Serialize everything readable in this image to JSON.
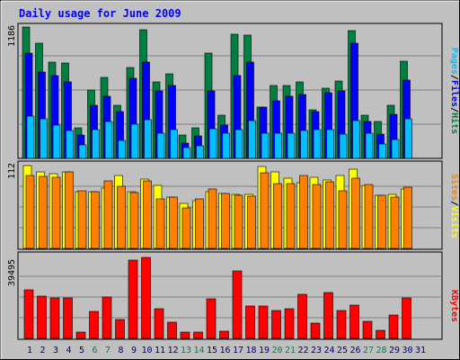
{
  "page": {
    "title": "Daily usage for June 2009"
  },
  "colors": {
    "frame_bg": "#c0c0c0",
    "title": "#0000ff",
    "hits": "#008040",
    "files": "#0000ff",
    "pages": "#00c0ff",
    "visits": "#ffff00",
    "sites": "#ff8000",
    "kbytes": "#ff0000",
    "weekend_label": "#00805c",
    "day_label": "#000080"
  },
  "chart_data": [
    {
      "type": "bar",
      "panel": "hits-files-pages",
      "categories": [
        "1",
        "2",
        "3",
        "4",
        "5",
        "6",
        "7",
        "8",
        "9",
        "10",
        "11",
        "12",
        "13",
        "14",
        "15",
        "16",
        "17",
        "18",
        "19",
        "20",
        "21",
        "22",
        "23",
        "24",
        "25",
        "26",
        "27",
        "28",
        "29",
        "30",
        "31"
      ],
      "axis_max_label": "1186",
      "ylim": [
        0,
        1186
      ],
      "legend_labels": [
        "Pages",
        "Files",
        "Hits"
      ],
      "legend_separators": [
        "/",
        "/"
      ],
      "grid": true,
      "series": [
        {
          "name": "Hits",
          "values": [
            1186,
            1040,
            870,
            860,
            280,
            620,
            730,
            480,
            820,
            1160,
            690,
            760,
            210,
            280,
            950,
            390,
            1120,
            1110,
            460,
            660,
            660,
            690,
            440,
            630,
            700,
            1150,
            390,
            330,
            480,
            880,
            0
          ]
        },
        {
          "name": "Files",
          "values": [
            950,
            780,
            750,
            690,
            210,
            480,
            560,
            420,
            720,
            870,
            610,
            660,
            140,
            200,
            610,
            300,
            750,
            870,
            460,
            520,
            560,
            580,
            420,
            590,
            610,
            1040,
            330,
            220,
            400,
            710,
            0
          ]
        },
        {
          "name": "Pages",
          "values": [
            380,
            360,
            300,
            250,
            120,
            260,
            330,
            160,
            310,
            350,
            230,
            260,
            100,
            110,
            270,
            230,
            260,
            340,
            230,
            230,
            230,
            250,
            260,
            260,
            220,
            340,
            230,
            130,
            170,
            360,
            0
          ]
        }
      ]
    },
    {
      "type": "bar",
      "panel": "visits-sites",
      "categories": [
        "1",
        "2",
        "3",
        "4",
        "5",
        "6",
        "7",
        "8",
        "9",
        "10",
        "11",
        "12",
        "13",
        "14",
        "15",
        "16",
        "17",
        "18",
        "19",
        "20",
        "21",
        "22",
        "23",
        "24",
        "25",
        "26",
        "27",
        "28",
        "29",
        "30",
        "31"
      ],
      "axis_max_label": "112",
      "ylim": [
        0,
        112
      ],
      "legend_labels": [
        "Sites",
        "Visits"
      ],
      "legend_separators": [
        "/"
      ],
      "grid": true,
      "series": [
        {
          "name": "Visits",
          "values": [
            112,
            104,
            101,
            103,
            77,
            77,
            81,
            98,
            77,
            94,
            85,
            69,
            61,
            65,
            77,
            74,
            73,
            73,
            111,
            104,
            95,
            89,
            96,
            92,
            99,
            107,
            85,
            72,
            73,
            80,
            0
          ]
        },
        {
          "name": "Sites",
          "values": [
            98,
            97,
            96,
            104,
            78,
            77,
            91,
            84,
            75,
            91,
            67,
            69,
            55,
            67,
            80,
            74,
            72,
            70,
            102,
            88,
            88,
            98,
            86,
            90,
            78,
            95,
            86,
            72,
            69,
            83,
            0
          ]
        }
      ]
    },
    {
      "type": "bar",
      "panel": "kbytes",
      "categories": [
        "1",
        "2",
        "3",
        "4",
        "5",
        "6",
        "7",
        "8",
        "9",
        "10",
        "11",
        "12",
        "13",
        "14",
        "15",
        "16",
        "17",
        "18",
        "19",
        "20",
        "21",
        "22",
        "23",
        "24",
        "25",
        "26",
        "27",
        "28",
        "29",
        "30",
        "31"
      ],
      "axis_max_label": "39495",
      "ylim": [
        0,
        39495
      ],
      "legend_labels": [
        "KBytes"
      ],
      "grid": true,
      "series": [
        {
          "name": "KBytes",
          "values": [
            23000,
            20000,
            19500,
            19500,
            2800,
            13000,
            19700,
            9000,
            37500,
            38500,
            14100,
            7800,
            2800,
            2800,
            18800,
            3300,
            32000,
            15300,
            15300,
            13200,
            14200,
            21200,
            7300,
            21800,
            13400,
            15700,
            8000,
            3800,
            11000,
            19200,
            0
          ]
        }
      ]
    }
  ],
  "x_axis": {
    "days": [
      "1",
      "2",
      "3",
      "4",
      "5",
      "6",
      "7",
      "8",
      "9",
      "10",
      "11",
      "12",
      "13",
      "14",
      "15",
      "16",
      "17",
      "18",
      "19",
      "20",
      "21",
      "22",
      "23",
      "24",
      "25",
      "26",
      "27",
      "28",
      "29",
      "30",
      "31"
    ],
    "weekend_days": [
      "6",
      "7",
      "13",
      "14",
      "20",
      "21",
      "27",
      "28"
    ]
  }
}
